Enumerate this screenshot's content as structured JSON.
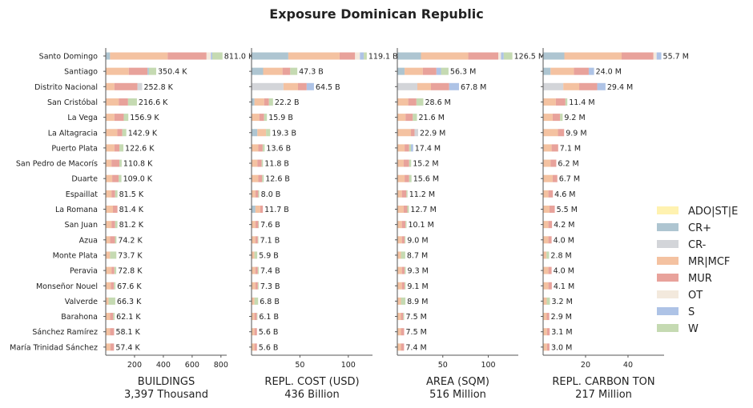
{
  "title": "Exposure Dominican Republic",
  "provinces": [
    "Santo Domingo",
    "Santiago",
    "Distrito Nacional",
    "San Cristóbal",
    "La Vega",
    "La Altagracia",
    "Puerto Plata",
    "San Pedro de Macorís",
    "Duarte",
    "Espaillat",
    "La Romana",
    "San Juan",
    "Azua",
    "Monte Plata",
    "Peravia",
    "Monseñor Nouel",
    "Valverde",
    "Barahona",
    "Sánchez Ramírez",
    "María Trinidad Sánchez"
  ],
  "legend": [
    {
      "label": "ADO|ST|E",
      "color": "#fff2b0"
    },
    {
      "label": "CR+",
      "color": "#aec5d1"
    },
    {
      "label": "CR-",
      "color": "#d3d5d9"
    },
    {
      "label": "MR|MCF",
      "color": "#f4c2a1"
    },
    {
      "label": "MUR",
      "color": "#e8a29b"
    },
    {
      "label": "OT",
      "color": "#f3e9dd"
    },
    {
      "label": "S",
      "color": "#aec3e6"
    },
    {
      "label": "W",
      "color": "#c5dab2"
    }
  ],
  "chart_data": [
    {
      "type": "bar",
      "orientation": "horizontal",
      "stacked": true,
      "xlabel": "BUILDINGS",
      "total_label": "3,397 Thousand",
      "xlim": [
        0,
        840
      ],
      "xticks": [
        200,
        400,
        600,
        800
      ],
      "value_labels": [
        "811.0 K",
        "350.4 K",
        "252.8 K",
        "216.6 K",
        "156.9 K",
        "142.9 K",
        "122.6 K",
        "110.8 K",
        "109.0 K",
        "81.5 K",
        "81.4 K",
        "81.2 K",
        "74.2 K",
        "73.7 K",
        "72.8 K",
        "67.6 K",
        "66.3 K",
        "62.1 K",
        "58.1 K",
        "57.4 K"
      ],
      "segments": [
        [
          [
            "CR+",
            30
          ],
          [
            "MR|MCF",
            400
          ],
          [
            "MUR",
            270
          ],
          [
            "OT",
            30
          ],
          [
            "S",
            10
          ],
          [
            "W",
            71
          ]
        ],
        [
          [
            "MR|MCF",
            160
          ],
          [
            "MUR",
            130
          ],
          [
            "CR+",
            10
          ],
          [
            "W",
            50.4
          ]
        ],
        [
          [
            "MR|MCF",
            60
          ],
          [
            "MUR",
            160
          ],
          [
            "CR-",
            32.8
          ]
        ],
        [
          [
            "MR|MCF",
            90
          ],
          [
            "MUR",
            65
          ],
          [
            "W",
            61.6
          ]
        ],
        [
          [
            "MR|MCF",
            60
          ],
          [
            "MUR",
            65
          ],
          [
            "W",
            31.9
          ]
        ],
        [
          [
            "MR|MCF",
            80
          ],
          [
            "MUR",
            35
          ],
          [
            "W",
            27.9
          ]
        ],
        [
          [
            "MR|MCF",
            60
          ],
          [
            "MUR",
            35
          ],
          [
            "W",
            27.6
          ]
        ],
        [
          [
            "MR|MCF",
            40
          ],
          [
            "MUR",
            55
          ],
          [
            "W",
            15.8
          ]
        ],
        [
          [
            "MR|MCF",
            45
          ],
          [
            "MUR",
            45
          ],
          [
            "W",
            19
          ]
        ],
        [
          [
            "MR|MCF",
            40
          ],
          [
            "MUR",
            25
          ],
          [
            "W",
            16.5
          ]
        ],
        [
          [
            "MR|MCF",
            50
          ],
          [
            "MUR",
            31.4
          ]
        ],
        [
          [
            "MR|MCF",
            40
          ],
          [
            "MUR",
            25
          ],
          [
            "W",
            16.2
          ]
        ],
        [
          [
            "MR|MCF",
            30
          ],
          [
            "MUR",
            34
          ],
          [
            "W",
            10.2
          ]
        ],
        [
          [
            "MR|MCF",
            30
          ],
          [
            "W",
            43.7
          ]
        ],
        [
          [
            "MR|MCF",
            40
          ],
          [
            "MUR",
            20
          ],
          [
            "W",
            12.8
          ]
        ],
        [
          [
            "MR|MCF",
            35
          ],
          [
            "MUR",
            22
          ],
          [
            "W",
            10.6
          ]
        ],
        [
          [
            "MR|MCF",
            20
          ],
          [
            "W",
            46.3
          ]
        ],
        [
          [
            "MR|MCF",
            30
          ],
          [
            "MUR",
            22
          ],
          [
            "W",
            10.1
          ]
        ],
        [
          [
            "MR|MCF",
            30
          ],
          [
            "MUR",
            28.1
          ]
        ],
        [
          [
            "MR|MCF",
            32
          ],
          [
            "MUR",
            25.4
          ]
        ]
      ]
    },
    {
      "type": "bar",
      "orientation": "horizontal",
      "stacked": true,
      "xlabel": "REPL. COST (USD)",
      "total_label": "436 Billion",
      "xlim": [
        0,
        125
      ],
      "xticks": [
        50,
        100
      ],
      "value_labels": [
        "119.1 B",
        "47.3 B",
        "64.5 B",
        "22.2 B",
        "15.9 B",
        "19.3 B",
        "13.6 B",
        "11.8 B",
        "12.6 B",
        "8.0 B",
        "11.7 B",
        "7.6 B",
        "7.1 B",
        "5.9 B",
        "7.4 B",
        "7.3 B",
        "6.8 B",
        "6.1 B",
        "5.6 B",
        "5.6 B"
      ],
      "segments": [
        [
          [
            "CR+",
            38
          ],
          [
            "MR|MCF",
            53
          ],
          [
            "MUR",
            16
          ],
          [
            "OT",
            5
          ],
          [
            "S",
            4
          ],
          [
            "W",
            3.1
          ]
        ],
        [
          [
            "CR+",
            12
          ],
          [
            "MR|MCF",
            20
          ],
          [
            "MUR",
            8
          ],
          [
            "W",
            7.3
          ]
        ],
        [
          [
            "CR-",
            33
          ],
          [
            "MR|MCF",
            15
          ],
          [
            "MUR",
            9
          ],
          [
            "S",
            7.5
          ]
        ],
        [
          [
            "CR+",
            3
          ],
          [
            "MR|MCF",
            10
          ],
          [
            "MUR",
            5
          ],
          [
            "W",
            4.2
          ]
        ],
        [
          [
            "MR|MCF",
            8
          ],
          [
            "MUR",
            5
          ],
          [
            "W",
            2.9
          ]
        ],
        [
          [
            "CR+",
            6
          ],
          [
            "MR|MCF",
            9
          ],
          [
            "W",
            4.3
          ]
        ],
        [
          [
            "MR|MCF",
            7
          ],
          [
            "MUR",
            4.5
          ],
          [
            "W",
            2.1
          ]
        ],
        [
          [
            "MR|MCF",
            6
          ],
          [
            "MUR",
            4.5
          ],
          [
            "W",
            1.3
          ]
        ],
        [
          [
            "MR|MCF",
            7
          ],
          [
            "MUR",
            4
          ],
          [
            "W",
            1.6
          ]
        ],
        [
          [
            "MR|MCF",
            4
          ],
          [
            "MUR",
            3
          ],
          [
            "W",
            1
          ]
        ],
        [
          [
            "CR+",
            4
          ],
          [
            "MR|MCF",
            5
          ],
          [
            "MUR",
            2.7
          ]
        ],
        [
          [
            "MR|MCF",
            4
          ],
          [
            "MUR",
            3
          ],
          [
            "W",
            0.6
          ]
        ],
        [
          [
            "MR|MCF",
            4
          ],
          [
            "MUR",
            2.5
          ],
          [
            "W",
            0.6
          ]
        ],
        [
          [
            "MR|MCF",
            3
          ],
          [
            "W",
            2.9
          ]
        ],
        [
          [
            "MR|MCF",
            4
          ],
          [
            "MUR",
            2.5
          ],
          [
            "W",
            0.9
          ]
        ],
        [
          [
            "MR|MCF",
            4
          ],
          [
            "MUR",
            2.5
          ],
          [
            "W",
            0.8
          ]
        ],
        [
          [
            "MR|MCF",
            3
          ],
          [
            "W",
            3.8
          ]
        ],
        [
          [
            "MR|MCF",
            3
          ],
          [
            "MUR",
            2.5
          ],
          [
            "W",
            0.6
          ]
        ],
        [
          [
            "MR|MCF",
            3
          ],
          [
            "MUR",
            2.6
          ]
        ],
        [
          [
            "MR|MCF",
            3
          ],
          [
            "MUR",
            2.6
          ]
        ]
      ]
    },
    {
      "type": "bar",
      "orientation": "horizontal",
      "stacked": true,
      "xlabel": "AREA (SQM)",
      "total_label": "516 Million",
      "xlim": [
        0,
        133
      ],
      "xticks": [
        50,
        100
      ],
      "value_labels": [
        "126.5 M",
        "56.3 M",
        "67.8 M",
        "28.6 M",
        "21.6 M",
        "22.9 M",
        "17.4 M",
        "15.2 M",
        "15.6 M",
        "11.2 M",
        "12.7 M",
        "10.1 M",
        "9.0 M",
        "8.7 M",
        "9.3 M",
        "9.1 M",
        "8.9 M",
        "7.5 M",
        "7.5 M",
        "7.4 M"
      ],
      "segments": [
        [
          [
            "CR+",
            26
          ],
          [
            "MR|MCF",
            52
          ],
          [
            "MUR",
            33
          ],
          [
            "OT",
            3
          ],
          [
            "S",
            3
          ],
          [
            "W",
            9.5
          ]
        ],
        [
          [
            "CR+",
            8
          ],
          [
            "MR|MCF",
            20
          ],
          [
            "MUR",
            15
          ],
          [
            "S",
            5
          ],
          [
            "W",
            8.3
          ]
        ],
        [
          [
            "CR-",
            22
          ],
          [
            "MR|MCF",
            15
          ],
          [
            "MUR",
            20
          ],
          [
            "S",
            10.8
          ]
        ],
        [
          [
            "MR|MCF",
            12
          ],
          [
            "MUR",
            9
          ],
          [
            "W",
            7.6
          ]
        ],
        [
          [
            "MR|MCF",
            9
          ],
          [
            "MUR",
            8
          ],
          [
            "W",
            4.6
          ]
        ],
        [
          [
            "MR|MCF",
            15
          ],
          [
            "MUR",
            4
          ],
          [
            "CR-",
            3.9
          ]
        ],
        [
          [
            "MR|MCF",
            8
          ],
          [
            "MUR",
            5
          ],
          [
            "W",
            2
          ],
          [
            "S",
            2.4
          ]
        ],
        [
          [
            "MR|MCF",
            7
          ],
          [
            "MUR",
            6
          ],
          [
            "W",
            2.2
          ]
        ],
        [
          [
            "MR|MCF",
            8
          ],
          [
            "MUR",
            5
          ],
          [
            "W",
            2.6
          ]
        ],
        [
          [
            "MR|MCF",
            5
          ],
          [
            "MUR",
            5
          ],
          [
            "W",
            1.2
          ]
        ],
        [
          [
            "MR|MCF",
            7
          ],
          [
            "MUR",
            4
          ],
          [
            "W",
            1.7
          ]
        ],
        [
          [
            "MR|MCF",
            5
          ],
          [
            "MUR",
            4
          ],
          [
            "W",
            1.1
          ]
        ],
        [
          [
            "MR|MCF",
            5
          ],
          [
            "MUR",
            3
          ],
          [
            "W",
            1
          ]
        ],
        [
          [
            "MR|MCF",
            4
          ],
          [
            "W",
            4.7
          ]
        ],
        [
          [
            "MR|MCF",
            5
          ],
          [
            "MUR",
            3
          ],
          [
            "W",
            1.3
          ]
        ],
        [
          [
            "MR|MCF",
            5
          ],
          [
            "MUR",
            3
          ],
          [
            "W",
            1.1
          ]
        ],
        [
          [
            "MR|MCF",
            4
          ],
          [
            "W",
            4.9
          ]
        ],
        [
          [
            "MR|MCF",
            4
          ],
          [
            "MUR",
            2.5
          ],
          [
            "W",
            1
          ]
        ],
        [
          [
            "MR|MCF",
            4
          ],
          [
            "MUR",
            3.5
          ]
        ],
        [
          [
            "MR|MCF",
            4
          ],
          [
            "MUR",
            3.4
          ]
        ]
      ]
    },
    {
      "type": "bar",
      "orientation": "horizontal",
      "stacked": true,
      "xlabel": "REPL. CARBON TON",
      "total_label": "217 Million",
      "xlim": [
        0,
        57
      ],
      "xticks": [
        20,
        40
      ],
      "value_labels": [
        "55.7 M",
        "24.0 M",
        "29.4 M",
        "11.4 M",
        "9.2 M",
        "9.9 M",
        "7.1 M",
        "6.2 M",
        "6.7 M",
        "4.6 M",
        "5.5 M",
        "4.2 M",
        "4.0 M",
        "2.8 M",
        "4.0 M",
        "4.1 M",
        "3.2 M",
        "2.9 M",
        "3.1 M",
        "3.0 M"
      ],
      "segments": [
        [
          [
            "CR+",
            10
          ],
          [
            "MR|MCF",
            27
          ],
          [
            "MUR",
            15
          ],
          [
            "OT",
            1.5
          ],
          [
            "S",
            2.2
          ]
        ],
        [
          [
            "CR+",
            3.5
          ],
          [
            "MR|MCF",
            11
          ],
          [
            "MUR",
            7
          ],
          [
            "S",
            2.5
          ]
        ],
        [
          [
            "CR-",
            9.5
          ],
          [
            "MR|MCF",
            7.5
          ],
          [
            "MUR",
            8.5
          ],
          [
            "S",
            3.9
          ]
        ],
        [
          [
            "MR|MCF",
            6
          ],
          [
            "MUR",
            4.5
          ],
          [
            "W",
            0.9
          ]
        ],
        [
          [
            "MR|MCF",
            4.5
          ],
          [
            "MUR",
            3.5
          ],
          [
            "W",
            1.2
          ]
        ],
        [
          [
            "MR|MCF",
            7
          ],
          [
            "MUR",
            2.9
          ]
        ],
        [
          [
            "MR|MCF",
            4
          ],
          [
            "MUR",
            3.1
          ]
        ],
        [
          [
            "MR|MCF",
            3.5
          ],
          [
            "MUR",
            2.7
          ]
        ],
        [
          [
            "MR|MCF",
            4.5
          ],
          [
            "MUR",
            2.2
          ]
        ],
        [
          [
            "MR|MCF",
            2.5
          ],
          [
            "MUR",
            2.1
          ]
        ],
        [
          [
            "MR|MCF",
            3
          ],
          [
            "MUR",
            2.5
          ]
        ],
        [
          [
            "MR|MCF",
            2.5
          ],
          [
            "MUR",
            1.7
          ]
        ],
        [
          [
            "MR|MCF",
            2.5
          ],
          [
            "MUR",
            1.5
          ]
        ],
        [
          [
            "MR|MCF",
            1.6
          ],
          [
            "W",
            1.2
          ]
        ],
        [
          [
            "MR|MCF",
            2.5
          ],
          [
            "MUR",
            1.5
          ]
        ],
        [
          [
            "MR|MCF",
            2.5
          ],
          [
            "MUR",
            1.6
          ]
        ],
        [
          [
            "MR|MCF",
            1.7
          ],
          [
            "W",
            1.5
          ]
        ],
        [
          [
            "MR|MCF",
            1.7
          ],
          [
            "MUR",
            1.2
          ]
        ],
        [
          [
            "MR|MCF",
            1.8
          ],
          [
            "MUR",
            1.3
          ]
        ],
        [
          [
            "MR|MCF",
            1.8
          ],
          [
            "MUR",
            1.2
          ]
        ]
      ]
    }
  ]
}
